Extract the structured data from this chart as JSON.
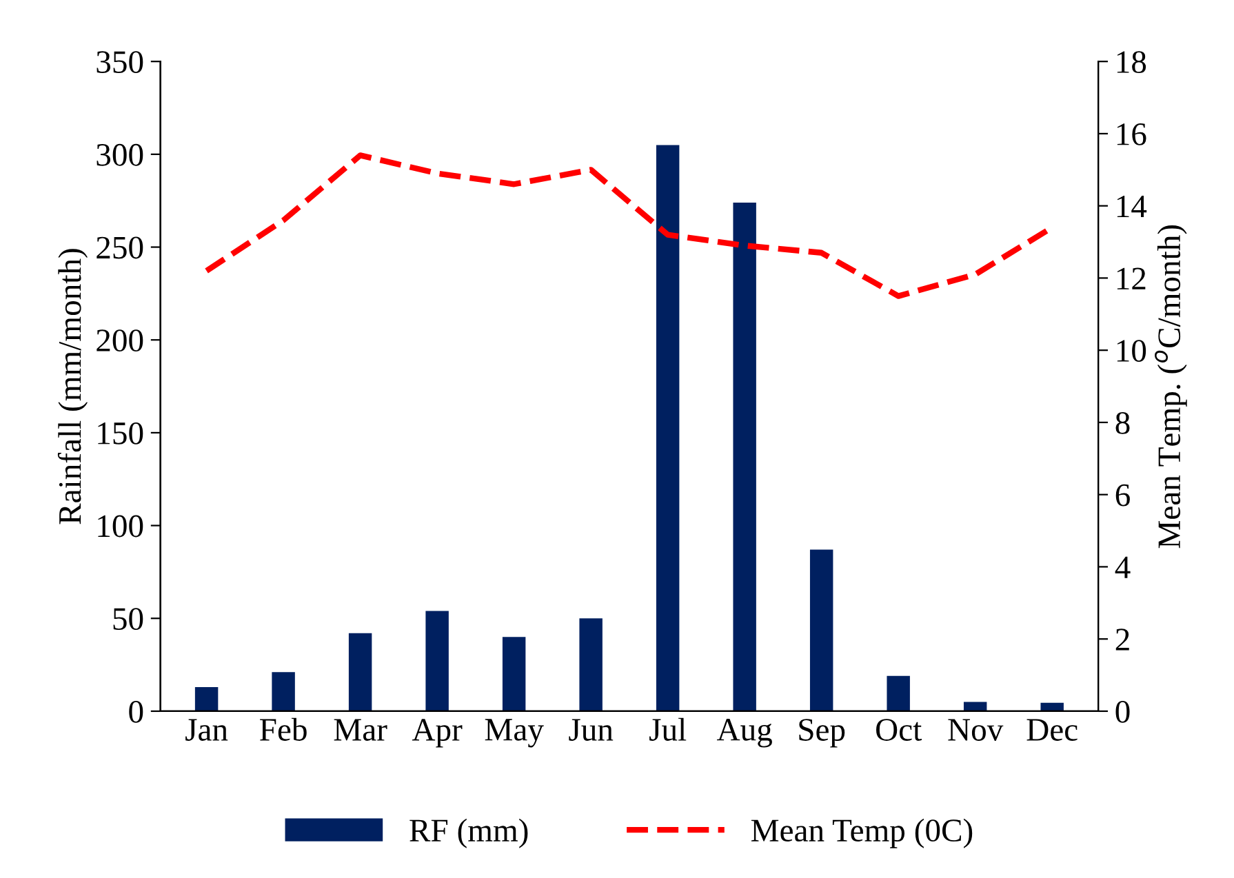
{
  "chart_data": {
    "type": "bar",
    "categories": [
      "Jan",
      "Feb",
      "Mar",
      "Apr",
      "May",
      "Jun",
      "Jul",
      "Aug",
      "Sep",
      "Oct",
      "Nov",
      "Dec"
    ],
    "series": [
      {
        "name": "RF (mm)",
        "color": "#002060",
        "values": [
          13,
          21,
          42,
          54,
          40,
          50,
          305,
          274,
          87,
          19,
          5,
          4.5
        ]
      },
      {
        "name": "Mean Temp (0C)",
        "type": "line",
        "axis": "y2",
        "color": "#ff0000",
        "line_style": "dashed",
        "values": [
          12.2,
          13.6,
          15.4,
          14.9,
          14.6,
          15.0,
          13.2,
          12.9,
          12.7,
          11.5,
          12.1,
          13.4
        ]
      }
    ],
    "ylabel": "Rainfall (mm/month)",
    "y2label": "Mean Temp. ($^{o}$C/month)",
    "ylim": [
      0,
      350
    ],
    "yticks": [
      0,
      50,
      100,
      150,
      200,
      250,
      300,
      350
    ],
    "y2lim": [
      0,
      18
    ],
    "y2ticks": [
      0,
      2,
      4,
      6,
      8,
      10,
      12,
      14,
      16,
      18
    ],
    "grid": false,
    "legend": "bottom",
    "marker": "none"
  }
}
